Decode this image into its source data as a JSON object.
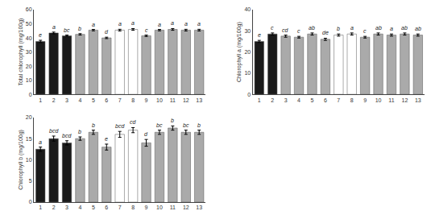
{
  "chart_data": [
    {
      "type": "bar",
      "categories": [
        "1",
        "2",
        "3",
        "4",
        "5",
        "6",
        "7",
        "8",
        "9",
        "10",
        "11",
        "12",
        "13"
      ],
      "values": [
        37.5,
        43.5,
        41.5,
        42.5,
        45.5,
        40.0,
        45.5,
        46.0,
        41.5,
        45.5,
        46.0,
        45.5,
        45.5
      ],
      "errors": [
        0.8,
        0.6,
        0.5,
        0.5,
        0.5,
        0.5,
        0.6,
        0.6,
        0.5,
        0.5,
        0.6,
        0.6,
        0.6
      ],
      "annotations": [
        "e",
        "a",
        "bc",
        "b",
        "a",
        "d",
        "a",
        "a",
        "c",
        "a",
        "a",
        "a",
        "a"
      ],
      "ylabel": "Total chlorophyll (mg/100g)",
      "ylim": [
        0,
        60
      ],
      "yticks": [
        0,
        10,
        20,
        30,
        40,
        50,
        60
      ],
      "colors": [
        "#1a1a1a",
        "#1a1a1a",
        "#1a1a1a",
        "#aaaaaa",
        "#aaaaaa",
        "#aaaaaa",
        "white",
        "white",
        "#aaaaaa",
        "#aaaaaa",
        "#aaaaaa",
        "#aaaaaa",
        "#aaaaaa"
      ],
      "grid": false
    },
    {
      "type": "bar",
      "categories": [
        "1",
        "2",
        "3",
        "4",
        "5",
        "6",
        "7",
        "8",
        "9",
        "10",
        "11",
        "12",
        "13"
      ],
      "values": [
        25.0,
        28.5,
        27.5,
        27.0,
        28.5,
        26.0,
        28.0,
        28.5,
        27.0,
        28.5,
        28.0,
        28.5,
        28.0
      ],
      "errors": [
        0.5,
        0.5,
        0.5,
        0.4,
        0.5,
        0.5,
        0.5,
        0.5,
        0.4,
        0.5,
        0.5,
        0.5,
        0.5
      ],
      "annotations": [
        "e",
        "c",
        "cd",
        "c",
        "ab",
        "de",
        "b",
        "a",
        "c",
        "ab",
        "a",
        "ab",
        "ab"
      ],
      "ylabel": "Chlorophyll a (mg/100g)",
      "ylim": [
        0,
        40
      ],
      "yticks": [
        0,
        10,
        20,
        30,
        40
      ],
      "colors": [
        "#1a1a1a",
        "#1a1a1a",
        "#aaaaaa",
        "#aaaaaa",
        "#aaaaaa",
        "#aaaaaa",
        "white",
        "white",
        "#aaaaaa",
        "#aaaaaa",
        "#aaaaaa",
        "#aaaaaa",
        "#aaaaaa"
      ],
      "grid": false
    },
    {
      "type": "bar",
      "categories": [
        "1",
        "2",
        "3",
        "4",
        "5",
        "6",
        "7",
        "8",
        "9",
        "10",
        "11",
        "12",
        "13"
      ],
      "values": [
        12.5,
        15.0,
        14.0,
        15.0,
        16.5,
        13.0,
        16.0,
        17.0,
        14.0,
        16.5,
        17.5,
        16.5,
        16.5
      ],
      "errors": [
        0.5,
        0.6,
        0.5,
        0.4,
        0.5,
        0.7,
        0.7,
        0.6,
        0.8,
        0.5,
        0.5,
        0.5,
        0.5
      ],
      "annotations": [
        "a",
        "bcd",
        "bcd",
        "b",
        "b",
        "e",
        "bcd",
        "cd",
        "d",
        "bc",
        "b",
        "bc",
        "b"
      ],
      "ylabel": "Chlorophyll b (mg/100g)",
      "ylim": [
        0,
        20
      ],
      "yticks": [
        0,
        5,
        10,
        15,
        20
      ],
      "colors": [
        "#1a1a1a",
        "#1a1a1a",
        "#1a1a1a",
        "#aaaaaa",
        "#aaaaaa",
        "#aaaaaa",
        "white",
        "white",
        "#aaaaaa",
        "#aaaaaa",
        "#aaaaaa",
        "#aaaaaa",
        "#aaaaaa"
      ],
      "grid": false
    }
  ]
}
